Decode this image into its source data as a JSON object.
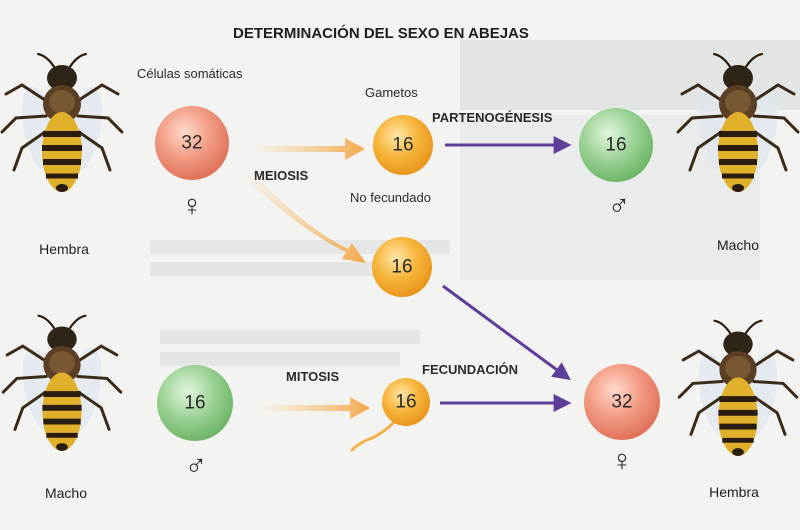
{
  "title": "DETERMINACIÓN DEL SEXO EN ABEJAS",
  "labels": {
    "celulas_somaticas": "Células somáticas",
    "gametos": "Gametos",
    "meiosis": "MEIOSIS",
    "no_fecundado": "No fecundado",
    "partenogenesis": "PARTENOGÉNESIS",
    "mitosis": "MITOSIS",
    "fecundacion": "FECUNDACIÓN"
  },
  "bees": {
    "hembra_left": "Hembra",
    "macho_left": "Macho",
    "macho_right": "Macho",
    "hembra_right": "Hembra"
  },
  "cells": {
    "female_somatic": "32",
    "egg_unfertilized": "16",
    "drone_result": "16",
    "egg_fertilized": "16",
    "male_somatic": "16",
    "sperm": "16",
    "female_result": "32"
  },
  "symbols": {
    "female": "♀",
    "male": "♂"
  },
  "colors": {
    "red_cell": "#ec8f76",
    "orange_cell": "#f5ad2e",
    "green_cell": "#8fcc8a",
    "purple_arrow": "#5d3f9a",
    "orange_arrow": "#f6c27a"
  }
}
